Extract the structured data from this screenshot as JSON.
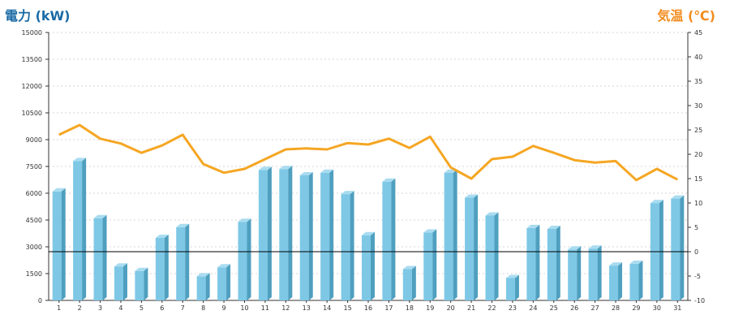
{
  "chart_data": {
    "type": "bar",
    "left_axis_label": "電力 (kW)",
    "right_axis_label": "気温 (℃)",
    "categories": [
      "1",
      "2",
      "3",
      "4",
      "5",
      "6",
      "7",
      "8",
      "9",
      "10",
      "11",
      "12",
      "13",
      "14",
      "15",
      "16",
      "17",
      "18",
      "19",
      "20",
      "21",
      "22",
      "23",
      "24",
      "25",
      "26",
      "27",
      "28",
      "29",
      "30",
      "31"
    ],
    "series": [
      {
        "axis": "left",
        "type": "bar",
        "color": "#7ec8e6",
        "values": [
          6100,
          7800,
          4600,
          1900,
          1650,
          3500,
          4100,
          1350,
          1850,
          4400,
          7300,
          7350,
          7000,
          7150,
          5950,
          3650,
          6650,
          1750,
          3800,
          7150,
          5750,
          4750,
          1250,
          4050,
          4000,
          2850,
          2900,
          1950,
          2050,
          5450,
          5700
        ]
      },
      {
        "axis": "right",
        "type": "line",
        "color": "#f5a623",
        "values": [
          24,
          26,
          23.2,
          22.2,
          20.3,
          21.8,
          24,
          18,
          16.2,
          17,
          19,
          21,
          21.2,
          21,
          22.3,
          22,
          23.2,
          21.3,
          23.6,
          17.3,
          15,
          19,
          19.5,
          21.7,
          20.3,
          18.8,
          18.3,
          18.6,
          14.7,
          17,
          14.8
        ]
      }
    ],
    "y_left": {
      "min": 0,
      "max": 15000,
      "ticks": [
        "0",
        "1500",
        "3000",
        "4500",
        "6000",
        "7500",
        "9000",
        "10500",
        "12000",
        "13500",
        "15000"
      ]
    },
    "y_right": {
      "min": -10,
      "max": 45,
      "ticks": [
        "-10",
        "-5",
        "0",
        "5",
        "10",
        "15",
        "20",
        "25",
        "30",
        "35",
        "40",
        "45"
      ]
    },
    "reference_line": {
      "axis": "right",
      "value": 0
    },
    "grid": true
  }
}
